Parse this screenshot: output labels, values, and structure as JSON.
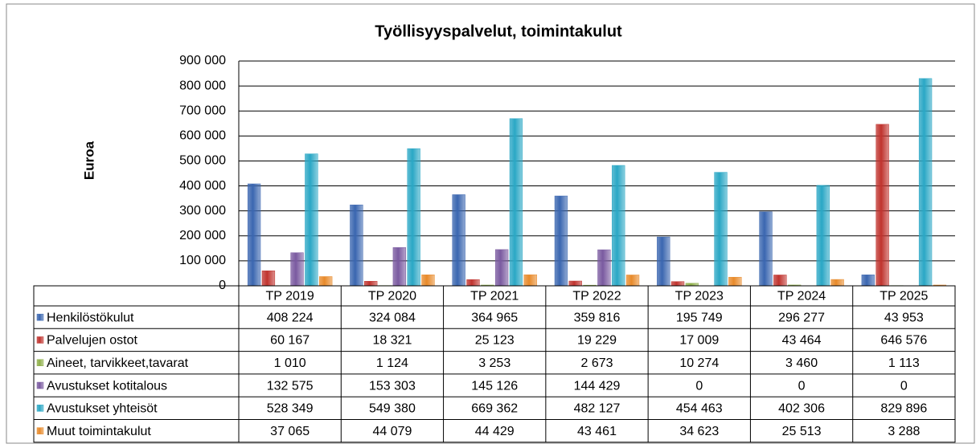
{
  "chart_data": {
    "type": "bar",
    "title": "Työllisyyspalvelut, toimintakulut",
    "y_label": "Euroa",
    "categories": [
      "TP 2019",
      "TP 2020",
      "TP 2021",
      "TP 2022",
      "TP 2023",
      "TP 2024",
      "TP 2025"
    ],
    "series": [
      {
        "name": "Henkilöstökulut",
        "color": "#3a66b0",
        "values": [
          408224,
          324084,
          364965,
          359816,
          195749,
          296277,
          43953
        ],
        "value_labels": [
          "408 224",
          "324 084",
          "364 965",
          "359 816",
          "195 749",
          "296 277",
          "43 953"
        ]
      },
      {
        "name": "Palvelujen ostot",
        "color": "#c0332e",
        "values": [
          60167,
          18321,
          25123,
          19229,
          17009,
          43464,
          646576
        ],
        "value_labels": [
          "60 167",
          "18 321",
          "25 123",
          "19 229",
          "17 009",
          "43 464",
          "646 576"
        ]
      },
      {
        "name": "Aineet, tarvikkeet,tavarat",
        "color": "#8fb04a",
        "values": [
          1010,
          1124,
          3253,
          2673,
          10274,
          3460,
          1113
        ],
        "value_labels": [
          "1 010",
          "1 124",
          "3 253",
          "2 673",
          "10 274",
          "3 460",
          "1 113"
        ]
      },
      {
        "name": "Avustukset kotitalous",
        "color": "#7a5aa0",
        "values": [
          132575,
          153303,
          145126,
          144429,
          0,
          0,
          0
        ],
        "value_labels": [
          "132 575",
          "153 303",
          "145 126",
          "144 429",
          "0",
          "0",
          "0"
        ]
      },
      {
        "name": "Avustukset yhteisöt",
        "color": "#2aa7c5",
        "values": [
          528349,
          549380,
          669362,
          482127,
          454463,
          402306,
          829896
        ],
        "value_labels": [
          "528 349",
          "549 380",
          "669 362",
          "482 127",
          "454 463",
          "402 306",
          "829 896"
        ]
      },
      {
        "name": "Muut toimintakulut",
        "color": "#e88a2a",
        "values": [
          37065,
          44079,
          44429,
          43461,
          34623,
          25513,
          3288
        ],
        "value_labels": [
          "37 065",
          "44 079",
          "44 429",
          "43 461",
          "34 623",
          "25 513",
          "3 288"
        ]
      }
    ],
    "ylim": [
      0,
      900000
    ],
    "yticks": [
      0,
      {
        "value": 100000,
        "label": "100 000"
      },
      {
        "value": 200000,
        "label": "200 000"
      },
      {
        "value": 300000,
        "label": "300 000"
      },
      {
        "value": 400000,
        "label": "400 000"
      },
      {
        "value": 500000,
        "label": "500 000"
      },
      {
        "value": 600000,
        "label": "600 000"
      },
      {
        "value": 700000,
        "label": "700 000"
      },
      {
        "value": 800000,
        "label": "800 000"
      },
      {
        "value": 900000,
        "label": "900 000"
      }
    ],
    "grid": true
  }
}
